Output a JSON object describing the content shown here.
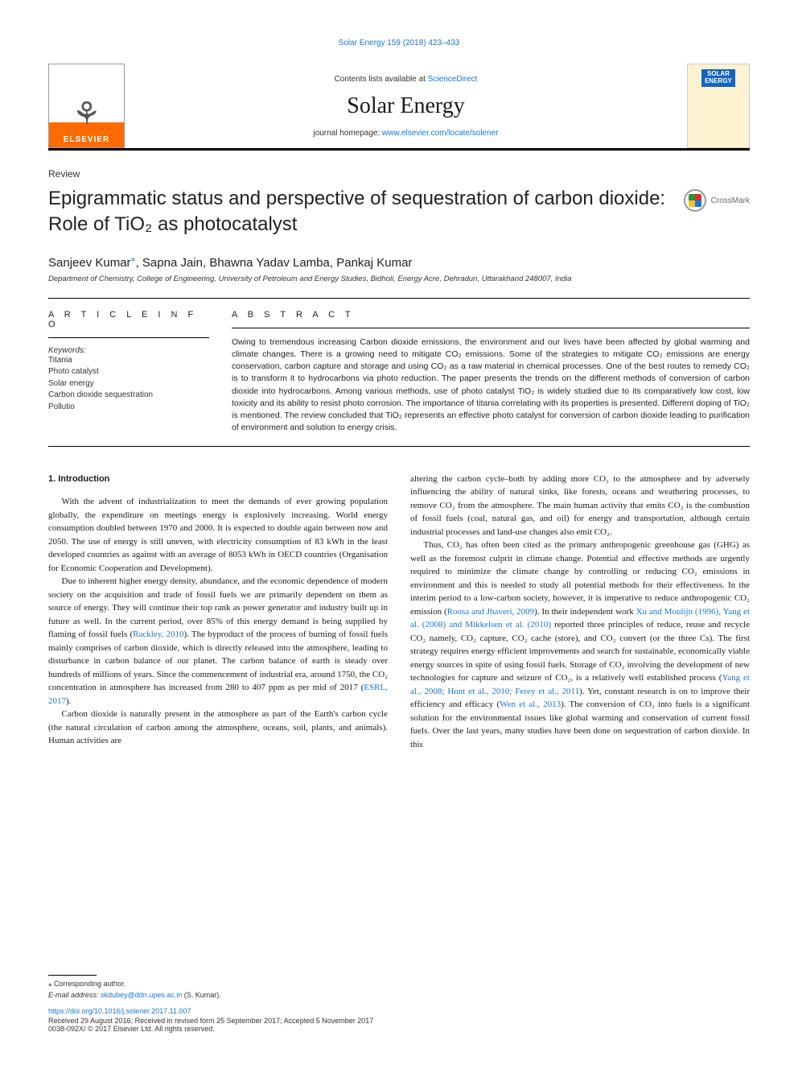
{
  "topLink": "Solar Energy 159 (2018) 423–433",
  "header": {
    "elsevierLabel": "ELSEVIER",
    "contentsPrefix": "Contents lists available at ",
    "contentsLink": "ScienceDirect",
    "journalTitle": "Solar Energy",
    "homepagePrefix": "journal homepage: ",
    "homepageLink": "www.elsevier.com/locate/solener",
    "coverLine1": "SOLAR",
    "coverLine2": "ENERGY"
  },
  "articleType": "Review",
  "title": "Epigrammatic status and perspective of sequestration of carbon dioxide: Role of TiO₂ as photocatalyst",
  "crossmarkLabel": "CrossMark",
  "authorsHtml": "Sanjeev Kumar*, Sapna Jain, Bhawna Yadav Lamba, Pankaj Kumar",
  "authors": {
    "a1": "Sanjeev Kumar",
    "a2": "Sapna Jain",
    "a3": "Bhawna Yadav Lamba",
    "a4": "Pankaj Kumar"
  },
  "affiliation": "Department of Chemistry, College of Engineering, University of Petroleum and Energy Studies, Bidholi, Energy Acre, Dehradun, Uttarakhand 248007, India",
  "articleInfoHeader": "A R T I C L E  I N F O",
  "abstractHeader": "A B S T R A C T",
  "keywordsLabel": "Keywords:",
  "keywords": [
    "Titania",
    "Photo catalyst",
    "Solar energy",
    "Carbon dioxide sequestration",
    "Pollutio"
  ],
  "abstract": "Owing to tremendous increasing Carbon dioxide emissions, the environment and our lives have been affected by global warming and climate changes. There is a growing need to mitigate CO₂ emissions. Some of the strategies to mitigate CO₂ emissions are energy conservation, carbon capture and storage and using CO₂ as a raw material in chemical processes. One of the best routes to remedy CO₂ is to transform it to hydrocarbons via photo reduction. The paper presents the trends on the different methods of conversion of carbon dioxide into hydrocarbons. Among various methods, use of photo catalyst TiO₂ is widely studied due to its comparatively low cost, low toxicity and its ability to resist photo corrosion. The importance of titania correlating with its properties is presented. Different doping of TiO₂ is mentioned. The review concluded that TiO₂ represents an effective photo catalyst for conversion of carbon dioxide leading to purification of environment and solution to energy crisis.",
  "body": {
    "heading1": "1. Introduction",
    "col1p1": "With the advent of industrialization to meet the demands of ever growing population globally, the expenditure on meetings energy is explosively increasing. World energy consumption doubled between 1970 and 2000. It is expected to double again between now and 2050. The use of energy is still uneven, with electricity consumption of 83 kWh in the least developed countries as against with an average of 8053 kWh in OECD countries (Organisation for Economic Cooperation and Development).",
    "col1p2a": "Due to inherent higher energy density, abundance, and the economic dependence of modern society on the acquisition and trade of fossil fuels we are primarily dependent on them as source of energy. They will continue their top rank as power generator and industry built up in future as well. In the current period, over 85% of this energy demand is being supplied by flaming of fossil fuels (",
    "col1p2cite1": "Rackley, 2010",
    "col1p2b": "). The byproduct of the process of burning of fossil fuels mainly comprises of carbon dioxide, which is directly released into the atmosphere, leading to disturbance in carbon balance of our planet. The carbon balance of earth is steady over hundreds of millions of years. Since the commencement of industrial era, around 1750, the CO₂ concentration in atmosphere has increased from 280 to 407 ppm as per mid of 2017 (",
    "col1p2cite2": "ESRL, 2017",
    "col1p2c": ").",
    "col1p3": "Carbon dioxide is naturally present in the atmosphere as part of the Earth's carbon cycle (the natural circulation of carbon among the atmosphere, oceans, soil, plants, and animals). Human activities are",
    "col2p1": "altering the carbon cycle–both by adding more CO₂ to the atmosphere and by adversely influencing the ability of natural sinks, like forests, oceans and weathering processes, to remove CO₂ from the atmosphere. The main human activity that emits CO₂ is the combustion of fossil fuels (coal, natural gas, and oil) for energy and transportation, although certain industrial processes and land-use changes also emit CO₂.",
    "col2p2a": "Thus, CO₂ has often been cited as the primary anthropogenic greenhouse gas (GHG) as well as the foremost culprit in climate change. Potential and effective methods are urgently required to minimize the climate change by controlling or reducing CO₂ emissions in environment and this is needed to study all potential methods for their effectiveness. In the interim period to a low-carbon society, however, it is imperative to reduce anthropogenic CO₂ emission (",
    "col2p2cite1": "Roosa and Jhaveri, 2009",
    "col2p2b": "). In their independent work ",
    "col2p2cite2": "Xu and Moulijn (1996), Yang et al. (2008) and Mikkelsen et al. (2010)",
    "col2p2c": " reported three principles of reduce, reuse and recycle CO₂ namely, CO₂ capture, CO₂ cache (store), and CO₂ convert (or the three Cs). The first strategy requires energy efficient improvements and search for sustainable, economically viable energy sources in spite of using fossil fuels. Storage of CO₂ involving the development of new technologies for capture and seizure of CO₂, is a relatively well established process (",
    "col2p2cite3": "Yang et al., 2008; Hunt et al., 2010; Ferey et al., 2011",
    "col2p2d": "). Yet, constant research is on to improve their efficiency and efficacy (",
    "col2p2cite4": "Wen et al., 2013",
    "col2p2e": "). The conversion of CO₂ into fuels is a significant solution for the environmental issues like global warming and conservation of current fossil fuels. Over the last years, many studies have been done on sequestration of carbon dioxide. In this"
  },
  "footer": {
    "corrLabel": "⁎ Corresponding author.",
    "emailLabel": "E-mail address: ",
    "email": "skdubey@ddn.upes.ac.in",
    "emailSuffix": " (S. Kumar).",
    "doi": "https://doi.org/10.1016/j.solener.2017.11.007",
    "received": "Received 29 August 2016; Received in revised form 25 September 2017; Accepted 5 November 2017",
    "copyright": "0038-092X/ © 2017 Elsevier Ltd. All rights reserved."
  },
  "colors": {
    "linkColor": "#1976d2",
    "textColor": "#1a1a1a",
    "elsevierOrange": "#ff6b00",
    "coverBg": "#fdf3d0",
    "coverBadge": "#1565c0"
  }
}
